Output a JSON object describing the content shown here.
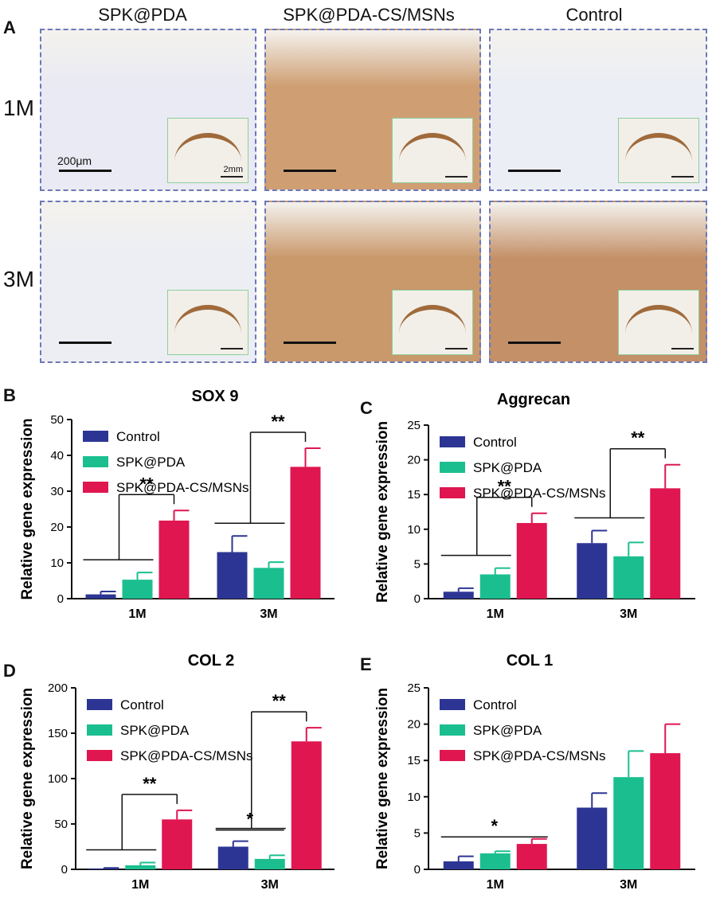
{
  "panel_letters": {
    "a": "A",
    "b": "B",
    "c": "C",
    "d": "D",
    "e": "E"
  },
  "micrographs": {
    "columns": [
      "SPK@PDA",
      "SPK@PDA-CS/MSNs",
      "Control"
    ],
    "rows": [
      "1M",
      "3M"
    ],
    "scale_label": "200μm",
    "inset_scale_label": "2mm",
    "tones": {
      "1M": [
        "#e9eaf3",
        "#cf9f73",
        "#eceef5"
      ],
      "3M": [
        "#eceef4",
        "#c9986b",
        "#c49068"
      ]
    }
  },
  "chart_data": [
    {
      "type": "bar",
      "panel": "B",
      "title": "SOX 9",
      "xlabel": "",
      "ylabel": "Relative gene expression",
      "categories": [
        "1M",
        "3M"
      ],
      "ylim": [
        0,
        50
      ],
      "yticks": [
        "0",
        "10",
        "20",
        "30",
        "40",
        "50"
      ],
      "series": [
        {
          "name": "Control",
          "values": [
            1.2,
            13.0
          ],
          "errors": [
            0.8,
            4.5
          ],
          "color": "#2d3594"
        },
        {
          "name": "SPK@PDA",
          "values": [
            5.3,
            8.6
          ],
          "errors": [
            2.0,
            1.6
          ],
          "color": "#1bbf8f"
        },
        {
          "name": "SPK@PDA-CS/MSNs",
          "values": [
            21.8,
            36.8
          ],
          "errors": [
            2.8,
            5.2
          ],
          "color": "#df1650"
        }
      ],
      "significance": [
        {
          "group": "1M",
          "label": "**"
        },
        {
          "group": "3M",
          "label": "**"
        }
      ],
      "legend_position": "top-left",
      "grid": false
    },
    {
      "type": "bar",
      "panel": "C",
      "title": "Aggrecan",
      "xlabel": "",
      "ylabel": "Relative gene expression",
      "categories": [
        "1M",
        "3M"
      ],
      "ylim": [
        0,
        25
      ],
      "yticks": [
        "0",
        "5",
        "10",
        "15",
        "20",
        "25"
      ],
      "series": [
        {
          "name": "Control",
          "values": [
            1.0,
            8.0
          ],
          "errors": [
            0.5,
            1.8
          ],
          "color": "#2d3594"
        },
        {
          "name": "SPK@PDA",
          "values": [
            3.5,
            6.1
          ],
          "errors": [
            0.9,
            2.0
          ],
          "color": "#1bbf8f"
        },
        {
          "name": "SPK@PDA-CS/MSNs",
          "values": [
            10.9,
            15.9
          ],
          "errors": [
            1.4,
            3.4
          ],
          "color": "#df1650"
        }
      ],
      "significance": [
        {
          "group": "1M",
          "label": "**"
        },
        {
          "group": "3M",
          "label": "**"
        }
      ],
      "legend_position": "top-left",
      "grid": false
    },
    {
      "type": "bar",
      "panel": "D",
      "title": "COL 2",
      "xlabel": "",
      "ylabel": "Relative gene expression",
      "categories": [
        "1M",
        "3M"
      ],
      "ylim": [
        0,
        200
      ],
      "yticks": [
        "0",
        "50",
        "100",
        "150",
        "200"
      ],
      "series": [
        {
          "name": "Control",
          "values": [
            1.0,
            25.0
          ],
          "errors": [
            0.5,
            6.0
          ],
          "color": "#2d3594"
        },
        {
          "name": "SPK@PDA",
          "values": [
            4.5,
            11.5
          ],
          "errors": [
            3.0,
            4.0
          ],
          "color": "#1bbf8f"
        },
        {
          "name": "SPK@PDA-CS/MSNs",
          "values": [
            55.0,
            141.0
          ],
          "errors": [
            10.0,
            15.0
          ],
          "color": "#df1650"
        }
      ],
      "significance": [
        {
          "group": "1M",
          "label": "**"
        },
        {
          "group": "3M",
          "label": "*"
        },
        {
          "group": "3M",
          "label": "**"
        }
      ],
      "legend_position": "top-left",
      "grid": false
    },
    {
      "type": "bar",
      "panel": "E",
      "title": "COL 1",
      "xlabel": "",
      "ylabel": "Relative gene expression",
      "categories": [
        "1M",
        "3M"
      ],
      "ylim": [
        0,
        25
      ],
      "yticks": [
        "0",
        "5",
        "10",
        "15",
        "20",
        "25"
      ],
      "series": [
        {
          "name": "Control",
          "values": [
            1.1,
            8.5
          ],
          "errors": [
            0.7,
            2.0
          ],
          "color": "#2d3594"
        },
        {
          "name": "SPK@PDA",
          "values": [
            2.2,
            12.7
          ],
          "errors": [
            0.3,
            3.6
          ],
          "color": "#1bbf8f"
        },
        {
          "name": "SPK@PDA-CS/MSNs",
          "values": [
            3.5,
            16.0
          ],
          "errors": [
            0.7,
            4.0
          ],
          "color": "#df1650"
        }
      ],
      "significance": [
        {
          "group": "1M",
          "label": "*"
        }
      ],
      "legend_position": "top-left",
      "grid": false
    }
  ]
}
